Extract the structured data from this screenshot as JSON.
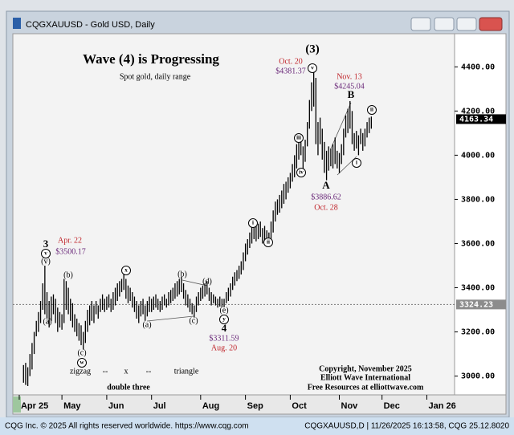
{
  "window": {
    "title": "CQGXAUUSD - Gold USD, Daily",
    "footer_left": "CQG Inc. © 2025 All rights reserved worldwide. https://www.cqg.com",
    "footer_right": "CQGXAUUSD,D | 11/26/2025 16:13:58, CQG 25.12.8020"
  },
  "chart_data": {
    "type": "range",
    "title": "Wave (4) is Progressing",
    "subtitle": "Spot gold, daily range",
    "color": "#000000",
    "xlim": [
      -5,
      202
    ],
    "xticks": [
      {
        "value": -2,
        "label": "Apr 25"
      },
      {
        "value": 18,
        "label": "May"
      },
      {
        "value": 39,
        "label": "Jun"
      },
      {
        "value": 60,
        "label": "Jul"
      },
      {
        "value": 83,
        "label": "Aug"
      },
      {
        "value": 104,
        "label": "Sep"
      },
      {
        "value": 125,
        "label": "Oct"
      },
      {
        "value": 148,
        "label": "Nov"
      },
      {
        "value": 168,
        "label": "Dec"
      },
      {
        "value": 189,
        "label": "Jan 26"
      }
    ],
    "ylim": [
      2915,
      4550
    ],
    "yticks": [
      {
        "value": 3000,
        "label": "3000.00"
      },
      {
        "value": 3200,
        "label": "3200.00"
      },
      {
        "value": 3400,
        "label": "3400.00"
      },
      {
        "value": 3600,
        "label": "3600.00"
      },
      {
        "value": 3800,
        "label": "3800.00"
      },
      {
        "value": 4000,
        "label": "4000.00"
      },
      {
        "value": 4200,
        "label": "4200.00"
      },
      {
        "value": 4400,
        "label": "4400.00"
      }
    ],
    "last_price": {
      "value": 4163.34,
      "label": "4163.34"
    },
    "ref_price": {
      "value": 3324.23,
      "label": "3324.23"
    },
    "high": [
      3050,
      3060,
      3040,
      3100,
      3150,
      3200,
      3250,
      3290,
      3340,
      3420,
      3500,
      3380,
      3340,
      3360,
      3370,
      3350,
      3310,
      3290,
      3280,
      3440,
      3430,
      3400,
      3350,
      3330,
      3280,
      3260,
      3240,
      3230,
      3200,
      3250,
      3300,
      3320,
      3340,
      3320,
      3340,
      3320,
      3350,
      3370,
      3350,
      3360,
      3370,
      3350,
      3380,
      3400,
      3420,
      3430,
      3440,
      3460,
      3440,
      3410,
      3400,
      3380,
      3360,
      3340,
      3320,
      3340,
      3350,
      3320,
      3340,
      3360,
      3350,
      3360,
      3370,
      3350,
      3340,
      3360,
      3370,
      3350,
      3380,
      3390,
      3400,
      3420,
      3430,
      3440,
      3450,
      3420,
      3390,
      3370,
      3350,
      3330,
      3320,
      3360,
      3380,
      3400,
      3410,
      3420,
      3430,
      3400,
      3380,
      3370,
      3360,
      3350,
      3360,
      3350,
      3350,
      3380,
      3400,
      3420,
      3450,
      3470,
      3480,
      3500,
      3520,
      3560,
      3600,
      3620,
      3650,
      3680,
      3700,
      3680,
      3690,
      3700,
      3670,
      3680,
      3660,
      3650,
      3700,
      3750,
      3790,
      3800,
      3820,
      3840,
      3870,
      3880,
      3900,
      3920,
      3960,
      4000,
      4050,
      4070,
      4080,
      4040,
      4070,
      4150,
      4250,
      4330,
      4381.37,
      4350,
      4150,
      4170,
      4120,
      4060,
      4020,
      4040,
      4030,
      4050,
      4080,
      4020,
      4010,
      4050,
      4120,
      4180,
      4210,
      4245.04,
      4200,
      4100,
      4110,
      4090,
      4120,
      4100,
      4120,
      4150,
      4170,
      4175
    ],
    "low": [
      2970,
      2960,
      2955,
      3000,
      3030,
      3100,
      3180,
      3200,
      3240,
      3300,
      3280,
      3260,
      3220,
      3250,
      3280,
      3240,
      3200,
      3220,
      3210,
      3240,
      3300,
      3280,
      3250,
      3220,
      3200,
      3180,
      3160,
      3140,
      3120,
      3150,
      3200,
      3230,
      3250,
      3240,
      3280,
      3260,
      3290,
      3300,
      3290,
      3300,
      3310,
      3290,
      3300,
      3320,
      3340,
      3360,
      3380,
      3390,
      3350,
      3330,
      3340,
      3310,
      3290,
      3260,
      3240,
      3270,
      3280,
      3250,
      3270,
      3290,
      3290,
      3300,
      3310,
      3300,
      3290,
      3300,
      3320,
      3310,
      3320,
      3330,
      3340,
      3350,
      3360,
      3370,
      3380,
      3350,
      3320,
      3310,
      3290,
      3280,
      3265,
      3290,
      3320,
      3340,
      3350,
      3360,
      3370,
      3340,
      3320,
      3330,
      3320,
      3310,
      3315,
      3312,
      3311.59,
      3330,
      3340,
      3360,
      3390,
      3410,
      3430,
      3440,
      3460,
      3480,
      3520,
      3550,
      3580,
      3600,
      3620,
      3610,
      3620,
      3630,
      3600,
      3610,
      3590,
      3590,
      3620,
      3650,
      3700,
      3730,
      3740,
      3760,
      3780,
      3800,
      3830,
      3850,
      3880,
      3900,
      3940,
      3980,
      4000,
      3940,
      3970,
      4040,
      4120,
      4200,
      4220,
      4050,
      4000,
      4050,
      3980,
      3920,
      3886.62,
      3930,
      3950,
      3940,
      3960,
      3940,
      3920,
      3960,
      4000,
      4080,
      4100,
      4120,
      4050,
      4020,
      4030,
      4000,
      4050,
      4020,
      4040,
      4080,
      4100,
      4120
    ],
    "annotations": [
      "3",
      "v",
      "(v)",
      "Apr. 22",
      "$3500.17",
      "(a)",
      "(b)",
      "(c)",
      "w",
      "x",
      "(a)",
      "(b)",
      "(c)",
      "(d)",
      "(e)",
      "y",
      "4",
      "$3311.59",
      "Aug. 20",
      "zigzag",
      "--",
      "x",
      "--",
      "triangle",
      "double three",
      "i",
      "ii",
      "iii",
      "iv",
      "v",
      "(3)",
      "Oct. 20",
      "$4381.37",
      "Nov. 13",
      "$4245.04",
      "B",
      "A",
      "$3886.62",
      "Oct. 28",
      "i",
      "ii",
      "Copyright, November 2025",
      "Elliott Wave International",
      "Free Resources at elliottwave.com"
    ]
  }
}
